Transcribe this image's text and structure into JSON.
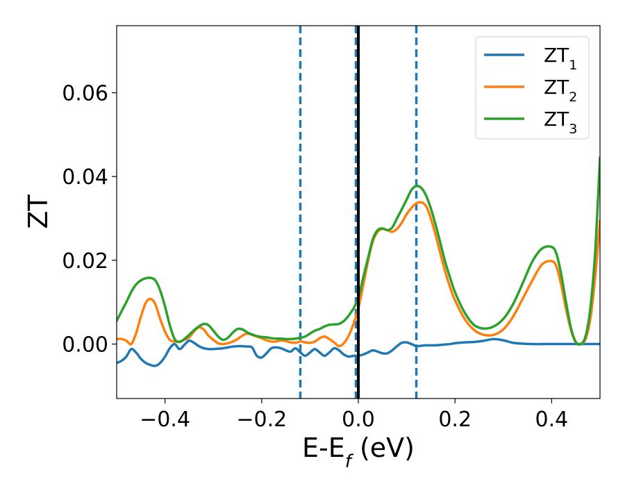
{
  "chart_data": {
    "type": "line",
    "title": "",
    "xlabel": "E-E",
    "xlabel_sub": "f",
    "xlabel_unit": " (eV)",
    "ylabel": "ZT",
    "xlim": [
      -0.5,
      0.5
    ],
    "ylim": [
      -0.013,
      0.076
    ],
    "x_ticks": [
      -0.4,
      -0.2,
      0.0,
      0.2,
      0.4
    ],
    "x_tick_labels": [
      "−0.4",
      "−0.2",
      "0.0",
      "0.2",
      "0.4"
    ],
    "y_ticks": [
      0.0,
      0.02,
      0.04,
      0.06
    ],
    "y_tick_labels": [
      "0.00",
      "0.02",
      "0.04",
      "0.06"
    ],
    "grid": false,
    "legend_position": "top-right",
    "vertical_lines": [
      {
        "x": -0.12,
        "style": "dashed",
        "color": "#1f77b4"
      },
      {
        "x": -0.005,
        "style": "dashed",
        "color": "#1f77b4"
      },
      {
        "x": 0.12,
        "style": "dashed",
        "color": "#1f77b4"
      },
      {
        "x": 0.0,
        "style": "solid",
        "color": "#000000"
      }
    ],
    "series": [
      {
        "name": "ZT",
        "name_sub": "1",
        "color": "#1f77b4",
        "x": [
          -0.5,
          -0.49,
          -0.48,
          -0.47,
          -0.46,
          -0.45,
          -0.44,
          -0.43,
          -0.42,
          -0.41,
          -0.4,
          -0.39,
          -0.38,
          -0.37,
          -0.36,
          -0.35,
          -0.34,
          -0.33,
          -0.32,
          -0.31,
          -0.3,
          -0.29,
          -0.28,
          -0.27,
          -0.26,
          -0.25,
          -0.24,
          -0.23,
          -0.22,
          -0.21,
          -0.2,
          -0.19,
          -0.18,
          -0.17,
          -0.16,
          -0.15,
          -0.14,
          -0.13,
          -0.12,
          -0.11,
          -0.1,
          -0.09,
          -0.08,
          -0.07,
          -0.06,
          -0.05,
          -0.04,
          -0.03,
          -0.02,
          -0.01,
          0.0,
          0.01,
          0.02,
          0.03,
          0.04,
          0.05,
          0.06,
          0.07,
          0.08,
          0.09,
          0.1,
          0.11,
          0.12,
          0.13,
          0.14,
          0.15,
          0.16,
          0.17,
          0.18,
          0.19,
          0.2,
          0.22,
          0.24,
          0.26,
          0.28,
          0.3,
          0.32,
          0.34,
          0.36,
          0.38,
          0.4,
          0.42,
          0.44,
          0.46,
          0.48,
          0.5
        ],
        "y": [
          -0.0045,
          -0.004,
          -0.003,
          -0.0012,
          -0.002,
          -0.0035,
          -0.0045,
          -0.005,
          -0.0052,
          -0.0045,
          -0.003,
          -0.001,
          0.0,
          -0.0012,
          -0.0002,
          0.0008,
          0.0003,
          -0.0005,
          -0.001,
          -0.0012,
          -0.0012,
          -0.0011,
          -0.001,
          -0.0008,
          -0.0006,
          -0.0005,
          -0.0005,
          -0.0006,
          -0.0008,
          -0.0028,
          -0.0032,
          -0.0022,
          -0.001,
          -0.0008,
          -0.001,
          -0.0015,
          -0.0018,
          -0.001,
          -0.002,
          -0.0028,
          -0.002,
          -0.0012,
          -0.002,
          -0.0028,
          -0.002,
          -0.001,
          -0.0015,
          -0.0025,
          -0.003,
          -0.0028,
          -0.0028,
          -0.0025,
          -0.002,
          -0.0015,
          -0.0018,
          -0.0022,
          -0.0022,
          -0.0015,
          -0.0005,
          0.0003,
          0.0004,
          0.0,
          -0.0005,
          -0.0004,
          -0.0003,
          -0.0003,
          -0.0003,
          -0.0002,
          -0.0001,
          0.0,
          0.0002,
          0.0004,
          0.0005,
          0.0008,
          0.0012,
          0.0009,
          0.0003,
          0.0001,
          0.0,
          0.0,
          0.0,
          0.0,
          0.0,
          0.0,
          0.0,
          0.0
        ]
      },
      {
        "name": "ZT",
        "name_sub": "2",
        "color": "#ff7f0e",
        "x": [
          -0.5,
          -0.49,
          -0.48,
          -0.47,
          -0.46,
          -0.45,
          -0.44,
          -0.43,
          -0.42,
          -0.41,
          -0.4,
          -0.39,
          -0.38,
          -0.37,
          -0.36,
          -0.35,
          -0.34,
          -0.33,
          -0.32,
          -0.31,
          -0.3,
          -0.29,
          -0.28,
          -0.27,
          -0.26,
          -0.25,
          -0.24,
          -0.23,
          -0.22,
          -0.21,
          -0.2,
          -0.19,
          -0.18,
          -0.17,
          -0.16,
          -0.15,
          -0.14,
          -0.13,
          -0.12,
          -0.11,
          -0.1,
          -0.09,
          -0.08,
          -0.07,
          -0.06,
          -0.05,
          -0.04,
          -0.03,
          -0.02,
          -0.01,
          0.0,
          0.01,
          0.02,
          0.03,
          0.04,
          0.05,
          0.06,
          0.07,
          0.08,
          0.09,
          0.1,
          0.11,
          0.12,
          0.13,
          0.14,
          0.15,
          0.16,
          0.17,
          0.18,
          0.19,
          0.2,
          0.22,
          0.24,
          0.26,
          0.28,
          0.3,
          0.32,
          0.34,
          0.36,
          0.38,
          0.4,
          0.41,
          0.42,
          0.43,
          0.44,
          0.45,
          0.46,
          0.47,
          0.48,
          0.49,
          0.5
        ],
        "y": [
          0.0012,
          0.0012,
          0.0008,
          0.0,
          0.0025,
          0.0065,
          0.0098,
          0.0108,
          0.0095,
          0.006,
          0.003,
          0.001,
          0.0006,
          0.0006,
          0.001,
          0.0016,
          0.003,
          0.004,
          0.0035,
          0.002,
          0.001,
          0.0002,
          0.0,
          0.0002,
          0.0006,
          0.0012,
          0.002,
          0.0025,
          0.0022,
          0.0018,
          0.0014,
          0.0009,
          0.0006,
          0.0006,
          0.0009,
          0.0007,
          0.0004,
          0.0003,
          0.0006,
          0.0004,
          0.0003,
          0.0006,
          0.0014,
          0.0018,
          0.0012,
          0.0004,
          -0.0005,
          0.0002,
          0.002,
          0.0048,
          0.0085,
          0.014,
          0.0198,
          0.0245,
          0.0268,
          0.0275,
          0.0272,
          0.0268,
          0.0275,
          0.029,
          0.031,
          0.0325,
          0.0336,
          0.0338,
          0.033,
          0.03,
          0.026,
          0.0215,
          0.0172,
          0.0135,
          0.0105,
          0.006,
          0.0033,
          0.0022,
          0.0022,
          0.0035,
          0.0065,
          0.0108,
          0.0152,
          0.019,
          0.0198,
          0.0185,
          0.014,
          0.0082,
          0.0033,
          0.0004,
          0.0,
          0.0012,
          0.006,
          0.016,
          0.0295
        ]
      },
      {
        "name": "ZT",
        "name_sub": "3",
        "color": "#2ca02c",
        "x": [
          -0.5,
          -0.49,
          -0.48,
          -0.47,
          -0.46,
          -0.45,
          -0.44,
          -0.43,
          -0.42,
          -0.41,
          -0.4,
          -0.39,
          -0.38,
          -0.37,
          -0.36,
          -0.35,
          -0.34,
          -0.33,
          -0.32,
          -0.31,
          -0.3,
          -0.29,
          -0.28,
          -0.27,
          -0.26,
          -0.25,
          -0.24,
          -0.23,
          -0.22,
          -0.21,
          -0.2,
          -0.19,
          -0.18,
          -0.17,
          -0.16,
          -0.15,
          -0.14,
          -0.13,
          -0.12,
          -0.11,
          -0.1,
          -0.09,
          -0.08,
          -0.07,
          -0.06,
          -0.05,
          -0.04,
          -0.03,
          -0.02,
          -0.01,
          0.0,
          0.01,
          0.02,
          0.03,
          0.04,
          0.05,
          0.06,
          0.07,
          0.08,
          0.09,
          0.1,
          0.11,
          0.12,
          0.13,
          0.14,
          0.15,
          0.16,
          0.17,
          0.18,
          0.19,
          0.2,
          0.22,
          0.24,
          0.26,
          0.28,
          0.3,
          0.32,
          0.34,
          0.36,
          0.38,
          0.4,
          0.41,
          0.42,
          0.43,
          0.44,
          0.45,
          0.46,
          0.47,
          0.48,
          0.49,
          0.5
        ],
        "y": [
          0.0055,
          0.0078,
          0.01,
          0.0124,
          0.0142,
          0.0152,
          0.0157,
          0.0158,
          0.0152,
          0.0128,
          0.009,
          0.0045,
          0.0012,
          0.0005,
          0.0012,
          0.0022,
          0.0033,
          0.0042,
          0.0048,
          0.0045,
          0.0032,
          0.0018,
          0.001,
          0.0015,
          0.0027,
          0.0036,
          0.0035,
          0.0028,
          0.0023,
          0.0019,
          0.0017,
          0.0016,
          0.0014,
          0.0013,
          0.0013,
          0.0012,
          0.0012,
          0.0013,
          0.0015,
          0.0018,
          0.0025,
          0.0032,
          0.0036,
          0.0042,
          0.0046,
          0.0047,
          0.0048,
          0.0055,
          0.0068,
          0.0085,
          0.011,
          0.0158,
          0.0205,
          0.025,
          0.0272,
          0.0276,
          0.0272,
          0.0278,
          0.03,
          0.0322,
          0.0345,
          0.0368,
          0.0377,
          0.0373,
          0.0355,
          0.0324,
          0.0284,
          0.024,
          0.0195,
          0.0158,
          0.0124,
          0.0075,
          0.0045,
          0.0037,
          0.0042,
          0.006,
          0.0095,
          0.0145,
          0.0197,
          0.0228,
          0.0232,
          0.0215,
          0.0165,
          0.0098,
          0.0038,
          0.0005,
          0.0,
          0.0018,
          0.0085,
          0.022,
          0.0445
        ]
      }
    ]
  }
}
